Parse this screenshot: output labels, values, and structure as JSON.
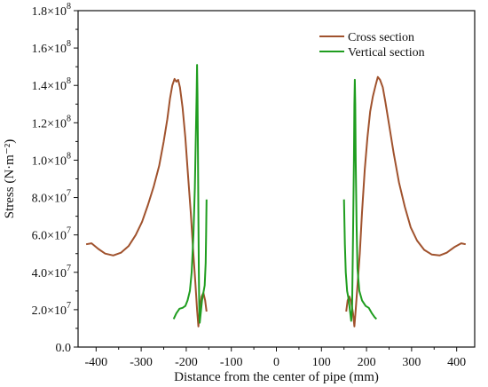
{
  "chart_data": {
    "type": "line",
    "xlabel": "Distance from the center of pipe (mm)",
    "ylabel": "Stress (N·m⁻²)",
    "xlim": [
      -440,
      440
    ],
    "ylim": [
      0,
      180000000
    ],
    "x_ticks": [
      -400,
      -300,
      -200,
      -100,
      0,
      100,
      200,
      300,
      400
    ],
    "x_tick_labels": [
      "-400",
      "-300",
      "-200",
      "-100",
      "0",
      "100",
      "200",
      "300",
      "400"
    ],
    "y_ticks": [
      0,
      20000000,
      40000000,
      60000000,
      80000000,
      100000000,
      120000000,
      140000000,
      160000000,
      180000000
    ],
    "y_tick_labels": [
      {
        "mantissa": "0.0",
        "exp": ""
      },
      {
        "mantissa": "2.0×10",
        "exp": "7"
      },
      {
        "mantissa": "4.0×10",
        "exp": "7"
      },
      {
        "mantissa": "6.0×10",
        "exp": "7"
      },
      {
        "mantissa": "8.0×10",
        "exp": "7"
      },
      {
        "mantissa": "1.0×10",
        "exp": "8"
      },
      {
        "mantissa": "1.2×10",
        "exp": "8"
      },
      {
        "mantissa": "1.4×10",
        "exp": "8"
      },
      {
        "mantissa": "1.6×10",
        "exp": "8"
      },
      {
        "mantissa": "1.8×10",
        "exp": "8"
      }
    ],
    "grid": false,
    "legend_position": "top-right",
    "series": [
      {
        "name": "Cross section",
        "color": "#a0522d",
        "segments": [
          [
            [
              -422,
              55000000
            ],
            [
              -410,
              55500000
            ],
            [
              -395,
              52500000
            ],
            [
              -380,
              50000000
            ],
            [
              -362,
              49000000
            ],
            [
              -345,
              50500000
            ],
            [
              -328,
              54000000
            ],
            [
              -312,
              60000000
            ],
            [
              -298,
              67000000
            ],
            [
              -285,
              76000000
            ],
            [
              -272,
              86000000
            ],
            [
              -260,
              97000000
            ],
            [
              -250,
              110000000
            ],
            [
              -242,
              122000000
            ],
            [
              -236,
              133000000
            ],
            [
              -231,
              140000000
            ],
            [
              -226,
              143500000
            ],
            [
              -222,
              142000000
            ],
            [
              -218,
              143000000
            ],
            [
              -214,
              139000000
            ],
            [
              -208,
              128000000
            ],
            [
              -202,
              112000000
            ],
            [
              -196,
              92000000
            ],
            [
              -190,
              72000000
            ],
            [
              -185,
              53000000
            ],
            [
              -180,
              35000000
            ],
            [
              -176,
              20000000
            ],
            [
              -173,
              11000000
            ],
            [
              -170,
              20000000
            ],
            [
              -166,
              27000000
            ],
            [
              -162,
              29000000
            ],
            [
              -158,
              25000000
            ],
            [
              -155,
              19000000
            ]
          ],
          [
            [
              155,
              19000000
            ],
            [
              158,
              25000000
            ],
            [
              162,
              27000000
            ],
            [
              166,
              24000000
            ],
            [
              170,
              18000000
            ],
            [
              173,
              11000000
            ],
            [
              176,
              20000000
            ],
            [
              180,
              33000000
            ],
            [
              185,
              50000000
            ],
            [
              190,
              72000000
            ],
            [
              196,
              95000000
            ],
            [
              202,
              112000000
            ],
            [
              208,
              126000000
            ],
            [
              214,
              134000000
            ],
            [
              220,
              140000000
            ],
            [
              225,
              144500000
            ],
            [
              230,
              143000000
            ],
            [
              236,
              139000000
            ],
            [
              242,
              131000000
            ],
            [
              250,
              119000000
            ],
            [
              260,
              104000000
            ],
            [
              272,
              88000000
            ],
            [
              285,
              75000000
            ],
            [
              298,
              64000000
            ],
            [
              312,
              57000000
            ],
            [
              328,
              52000000
            ],
            [
              345,
              49500000
            ],
            [
              362,
              49000000
            ],
            [
              378,
              50500000
            ],
            [
              395,
              53500000
            ],
            [
              410,
              55500000
            ],
            [
              420,
              55000000
            ]
          ]
        ]
      },
      {
        "name": "Vertical section",
        "color": "#1f9d1f",
        "segments": [
          [
            [
              -228,
              15000000
            ],
            [
              -222,
              18000000
            ],
            [
              -215,
              20500000
            ],
            [
              -208,
              21000000
            ],
            [
              -202,
              22000000
            ],
            [
              -197,
              25000000
            ],
            [
              -192,
              30000000
            ],
            [
              -188,
              40000000
            ],
            [
              -184,
              60000000
            ],
            [
              -181,
              85000000
            ],
            [
              -179,
              110000000
            ],
            [
              -177,
              135000000
            ],
            [
              -176,
              151000000
            ],
            [
              -175,
              135000000
            ],
            [
              -174,
              105000000
            ],
            [
              -173,
              70000000
            ],
            [
              -172,
              40000000
            ],
            [
              -171,
              20000000
            ],
            [
              -170,
              13000000
            ],
            [
              -168,
              18000000
            ],
            [
              -165,
              25000000
            ],
            [
              -162,
              29000000
            ],
            [
              -159,
              33000000
            ],
            [
              -157,
              45000000
            ],
            [
              -156,
              60000000
            ],
            [
              -155,
              79000000
            ]
          ],
          [
            [
              150,
              79000000
            ],
            [
              152,
              55000000
            ],
            [
              154,
              40000000
            ],
            [
              157,
              30000000
            ],
            [
              160,
              26000000
            ],
            [
              163,
              20000000
            ],
            [
              166,
              14000000
            ],
            [
              168,
              20000000
            ],
            [
              170,
              60000000
            ],
            [
              172,
              100000000
            ],
            [
              173,
              130000000
            ],
            [
              174,
              143000000
            ],
            [
              175,
              130000000
            ],
            [
              176,
              100000000
            ],
            [
              178,
              65000000
            ],
            [
              180,
              42000000
            ],
            [
              184,
              30000000
            ],
            [
              190,
              25000000
            ],
            [
              198,
              22000000
            ],
            [
              205,
              21000000
            ],
            [
              212,
              18000000
            ],
            [
              218,
              16000000
            ],
            [
              222,
              15000000
            ]
          ]
        ]
      }
    ]
  }
}
